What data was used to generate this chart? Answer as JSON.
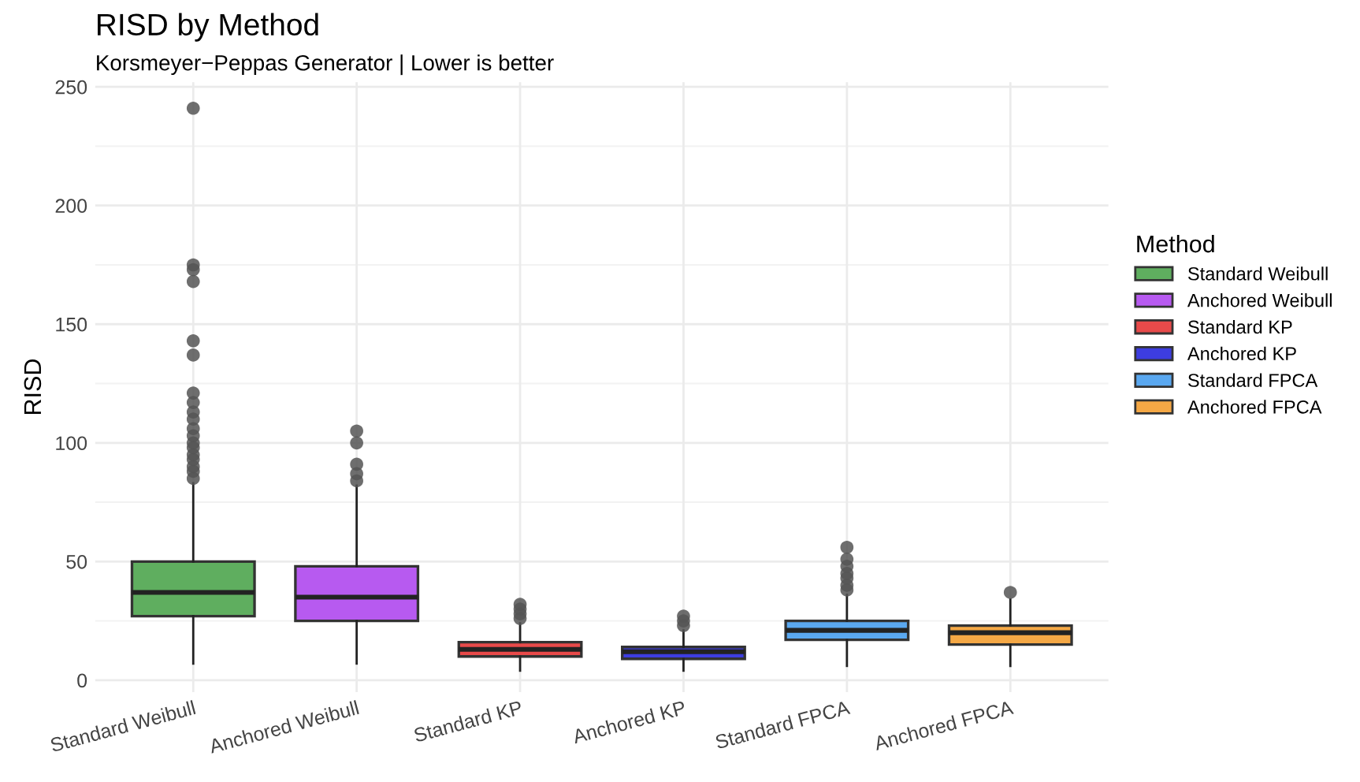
{
  "chart_data": {
    "type": "box",
    "title": "RISD by Method",
    "subtitle": "Korsmeyer−Peppas Generator | Lower is better",
    "ylabel": "RISD",
    "legend_title": "Method",
    "categories": [
      "Standard Weibull",
      "Anchored Weibull",
      "Standard KP",
      "Anchored KP",
      "Standard FPCA",
      "Anchored FPCA"
    ],
    "series": [
      {
        "name": "Standard Weibull",
        "color": "#5fae5f",
        "boxes": [
          {
            "low": 7,
            "q1": 27,
            "median": 37,
            "q3": 50,
            "high": 83,
            "outliers": [
              85,
              88,
              90,
              93,
              95,
              98,
              100,
              103,
              106,
              110,
              113,
              117,
              121,
              137,
              143,
              168,
              173,
              175,
              241
            ]
          },
          null,
          null,
          null,
          null,
          null
        ]
      },
      {
        "name": "Anchored Weibull",
        "color": "#b75af0",
        "boxes": [
          null,
          {
            "low": 7,
            "q1": 25,
            "median": 35,
            "q3": 48,
            "high": 82,
            "outliers": [
              84,
              87,
              91,
              100,
              105
            ]
          },
          null,
          null,
          null,
          null
        ]
      },
      {
        "name": "Standard KP",
        "color": "#e84a4a",
        "boxes": [
          null,
          null,
          {
            "low": 4,
            "q1": 10,
            "median": 13,
            "q3": 16,
            "high": 24,
            "outliers": [
              26,
              28,
              30,
              32
            ]
          },
          null,
          null,
          null
        ]
      },
      {
        "name": "Anchored KP",
        "color": "#3d3de0",
        "boxes": [
          null,
          null,
          null,
          {
            "low": 4,
            "q1": 9,
            "median": 12,
            "q3": 14,
            "high": 21,
            "outliers": [
              23,
              25,
              27
            ]
          },
          null,
          null
        ]
      },
      {
        "name": "Standard FPCA",
        "color": "#5aa8f0",
        "boxes": [
          null,
          null,
          null,
          null,
          {
            "low": 6,
            "q1": 17,
            "median": 21,
            "q3": 25,
            "high": 36,
            "outliers": [
              38,
              40,
              43,
              45,
              48,
              51,
              56
            ]
          },
          null
        ]
      },
      {
        "name": "Anchored FPCA",
        "color": "#f5a845",
        "boxes": [
          null,
          null,
          null,
          null,
          null,
          {
            "low": 6,
            "q1": 15,
            "median": 20,
            "q3": 23,
            "high": 34,
            "outliers": [
              37
            ]
          }
        ]
      }
    ],
    "ylim": [
      -5,
      252
    ],
    "yticks": [
      0,
      50,
      100,
      150,
      200,
      250
    ],
    "grid": true,
    "legend": "right"
  }
}
